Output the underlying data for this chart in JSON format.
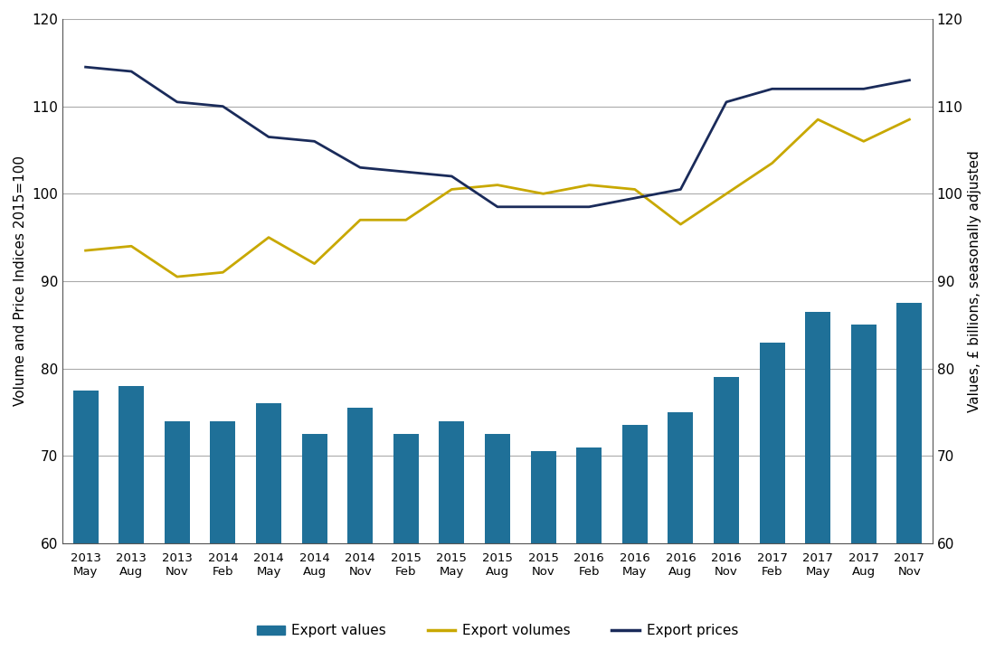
{
  "x_labels_year": [
    "2013",
    "2013",
    "2013",
    "2014",
    "2014",
    "2014",
    "2014",
    "2015",
    "2015",
    "2015",
    "2015",
    "2016",
    "2016",
    "2016",
    "2016",
    "2017",
    "2017",
    "2017",
    "2017"
  ],
  "x_labels_month": [
    "May",
    "Aug",
    "Nov",
    "Feb",
    "May",
    "Aug",
    "Nov",
    "Feb",
    "May",
    "Aug",
    "Nov",
    "Feb",
    "May",
    "Aug",
    "Nov",
    "Feb",
    "May",
    "Aug",
    "Nov"
  ],
  "export_values": [
    77.5,
    78.0,
    74.0,
    74.0,
    76.0,
    72.5,
    75.5,
    72.5,
    74.0,
    72.5,
    70.5,
    71.0,
    73.5,
    75.0,
    79.0,
    83.0,
    86.5,
    85.0,
    87.5
  ],
  "export_volumes": [
    93.5,
    94.0,
    90.5,
    91.0,
    95.0,
    92.0,
    97.0,
    97.0,
    100.5,
    101.0,
    100.0,
    101.0,
    100.5,
    96.5,
    100.0,
    103.5,
    108.5,
    106.0,
    108.5
  ],
  "export_prices": [
    114.5,
    114.0,
    110.5,
    110.0,
    106.5,
    106.0,
    103.0,
    102.5,
    102.0,
    98.5,
    98.5,
    98.5,
    99.5,
    100.5,
    110.5,
    112.0,
    112.0,
    112.0,
    113.0
  ],
  "bar_color": "#1f7098",
  "volume_color": "#c8a800",
  "price_color": "#1a2b5a",
  "ylim": [
    60,
    120
  ],
  "yticks": [
    60,
    70,
    80,
    90,
    100,
    110,
    120
  ],
  "ylabel_left": "Volume and Price Indices 2015=100",
  "ylabel_right": "Values, £ billions, seasonally adjusted",
  "legend_labels": [
    "Export values",
    "Export volumes",
    "Export prices"
  ],
  "background_color": "#ffffff",
  "grid_color": "#aaaaaa",
  "spine_color": "#555555"
}
